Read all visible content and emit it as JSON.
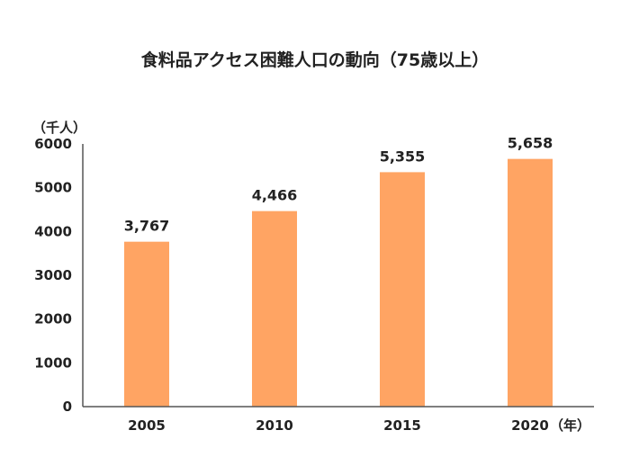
{
  "chart_title": "食料品アクセス困難人口の動向（75歳以上）",
  "chart_data": {
    "type": "bar",
    "title": "食料品アクセス困難人口の動向（75歳以上）",
    "ylabel": "（千人）",
    "xunit": "（年）",
    "categories": [
      "2005",
      "2010",
      "2015",
      "2020"
    ],
    "values": [
      3767,
      4466,
      5355,
      5658
    ],
    "data_labels": [
      "3,767",
      "4,466",
      "5,355",
      "5,658"
    ],
    "yticks": [
      "0",
      "1000",
      "2000",
      "3000",
      "4000",
      "5000",
      "6000"
    ],
    "ylim": [
      0,
      6000
    ],
    "grid": false,
    "legend": "none",
    "bar_color": "#FFA463",
    "axis_color": "#555555"
  }
}
